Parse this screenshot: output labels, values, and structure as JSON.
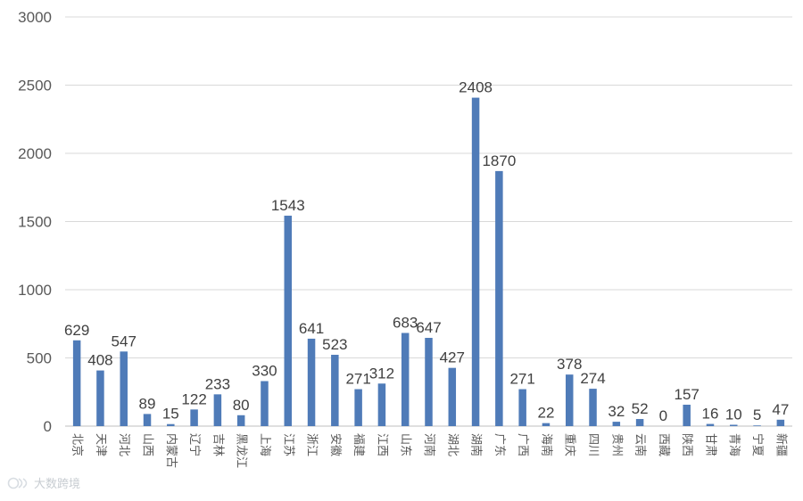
{
  "colors": {
    "bar": "#4F7BB8",
    "grid": "#d9d9d9",
    "axis": "#bfbfbf"
  },
  "watermark": {
    "icon": "logo-mark-icon",
    "text": "大数跨境"
  },
  "chart_data": {
    "type": "bar",
    "ylim": [
      0,
      3000
    ],
    "yticks": [
      0,
      500,
      1000,
      1500,
      2000,
      2500,
      3000
    ],
    "grid": true,
    "categories": [
      "北京",
      "天津",
      "河北",
      "山西",
      "内蒙古",
      "辽宁",
      "吉林",
      "黑龙江",
      "上海",
      "江苏",
      "浙江",
      "安徽",
      "福建",
      "江西",
      "山东",
      "河南",
      "湖北",
      "湖南",
      "广东",
      "广西",
      "海南",
      "重庆",
      "四川",
      "贵州",
      "云南",
      "西藏",
      "陕西",
      "甘肃",
      "青海",
      "宁夏",
      "新疆"
    ],
    "values": [
      629,
      408,
      547,
      89,
      15,
      122,
      233,
      80,
      330,
      1543,
      641,
      523,
      271,
      312,
      683,
      647,
      427,
      2408,
      1870,
      271,
      22,
      378,
      274,
      32,
      52,
      0,
      157,
      16,
      10,
      5,
      47
    ]
  }
}
